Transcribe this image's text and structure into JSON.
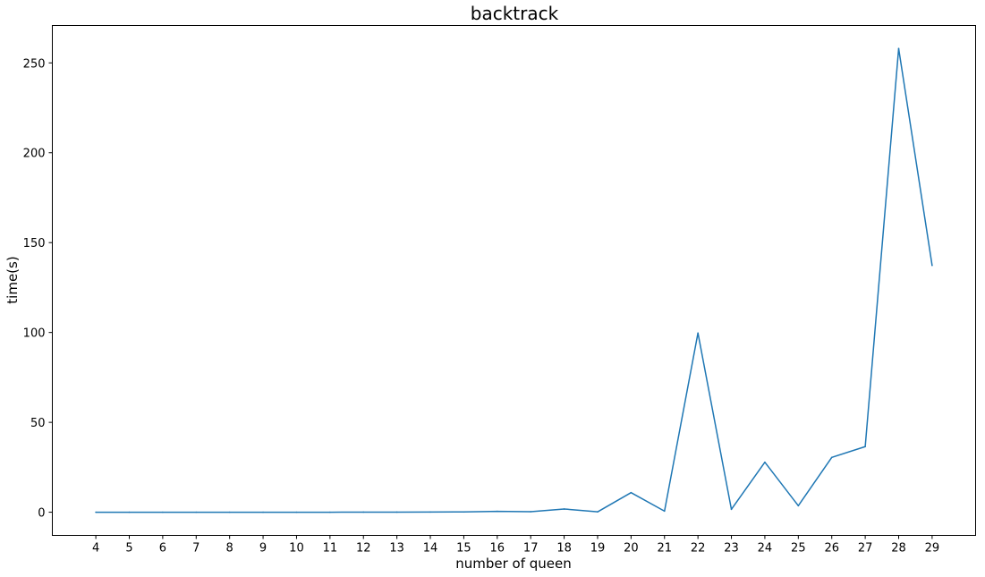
{
  "chart_data": {
    "type": "line",
    "title": "backtrack",
    "xlabel": "number of queen",
    "ylabel": "time(s)",
    "x": [
      4,
      5,
      6,
      7,
      8,
      9,
      10,
      11,
      12,
      13,
      14,
      15,
      16,
      17,
      18,
      19,
      20,
      21,
      22,
      23,
      24,
      25,
      26,
      27,
      28,
      29
    ],
    "x_tick_labels": [
      "4",
      "5",
      "6",
      "7",
      "8",
      "9",
      "10",
      "11",
      "12",
      "13",
      "14",
      "15",
      "16",
      "17",
      "18",
      "19",
      "20",
      "21",
      "22",
      "23",
      "24",
      "25",
      "26",
      "27",
      "28",
      "29"
    ],
    "y_ticks": [
      0,
      50,
      100,
      150,
      200,
      250
    ],
    "y_tick_labels": [
      "0",
      "50",
      "100",
      "150",
      "200",
      "250"
    ],
    "xlim": [
      2.7,
      30.3
    ],
    "ylim": [
      -12.9,
      270.8
    ],
    "grid": false,
    "legend": "none",
    "series": [
      {
        "color": "#1f77b4",
        "values": [
          0.0,
          0.0,
          0.0,
          0.0,
          0.0,
          0.0,
          0.0,
          0.0,
          0.05,
          0.05,
          0.1,
          0.15,
          0.5,
          0.3,
          1.8,
          0.2,
          10.9,
          0.6,
          99.7,
          1.6,
          27.8,
          3.6,
          30.5,
          36.5,
          258.0,
          137.3
        ]
      }
    ]
  }
}
